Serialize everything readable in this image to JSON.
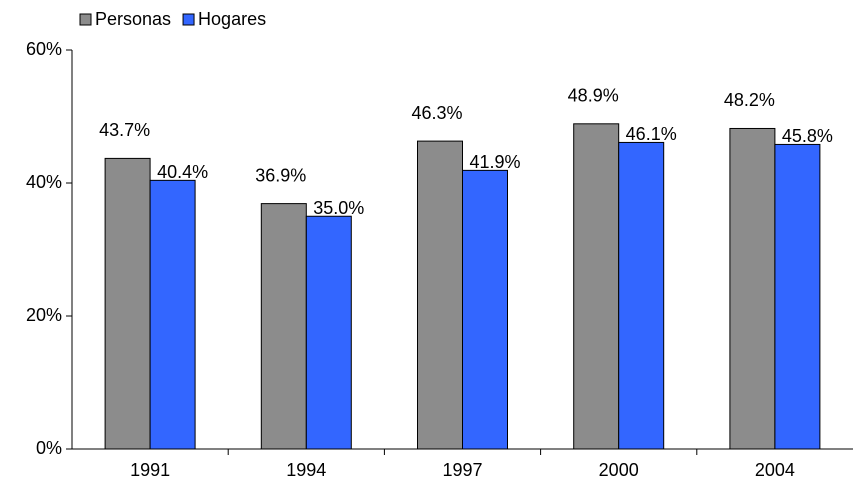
{
  "chart_data": {
    "type": "bar",
    "categories": [
      "1991",
      "1994",
      "1997",
      "2000",
      "2004"
    ],
    "series": [
      {
        "name": "Personas",
        "color": "#8c8c8c",
        "values": [
          43.7,
          36.9,
          46.3,
          48.9,
          48.2
        ],
        "value_labels": [
          "43.7%",
          "36.9%",
          "46.3%",
          "48.9%",
          "48.2%"
        ]
      },
      {
        "name": "Hogares",
        "color": "#3366ff",
        "values": [
          40.4,
          35.0,
          41.9,
          46.1,
          45.8
        ],
        "value_labels": [
          "40.4%",
          "35.0%",
          "41.9%",
          "46.1%",
          "45.8%"
        ]
      }
    ],
    "ylim": [
      0,
      60
    ],
    "yticks": [
      {
        "value": 0,
        "label": "0%"
      },
      {
        "value": 20,
        "label": "20%"
      },
      {
        "value": 40,
        "label": "40%"
      },
      {
        "value": 60,
        "label": "60%"
      }
    ],
    "legend": "top-left"
  }
}
